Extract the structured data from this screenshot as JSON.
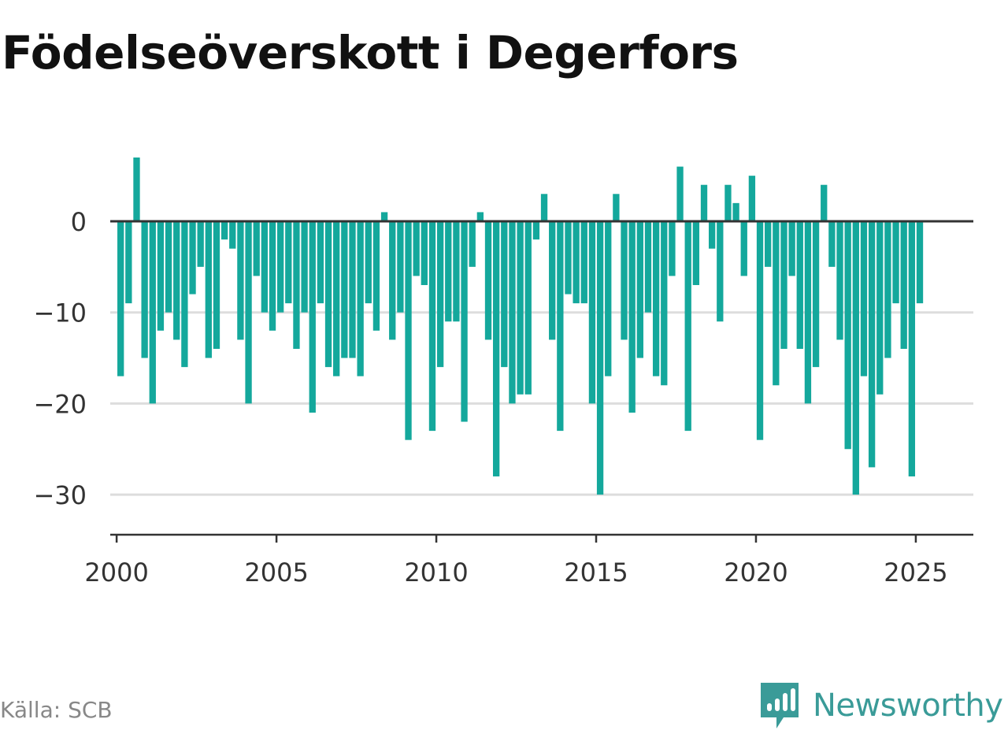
{
  "title": "Födelseöverskott i Degerfors",
  "source": "Källa: SCB",
  "brand": {
    "name": "Newsworthy",
    "icon": "newsworthy-logo-icon"
  },
  "colors": {
    "bar": "#14a89c",
    "zero_line": "#333333",
    "grid": "#dddddd",
    "brand": "#3a9b98"
  },
  "chart_data": {
    "type": "bar",
    "frequency": "quarterly",
    "start": "2000Q1",
    "values": [
      -17,
      -9,
      7,
      -15,
      -20,
      -12,
      -10,
      -13,
      -16,
      -8,
      -5,
      -15,
      -14,
      -2,
      -3,
      -13,
      -20,
      -6,
      -10,
      -12,
      -10,
      -9,
      -14,
      -10,
      -21,
      -9,
      -16,
      -17,
      -15,
      -15,
      -17,
      -9,
      -12,
      1,
      -13,
      -10,
      -24,
      -6,
      -7,
      -23,
      -16,
      -11,
      -11,
      -22,
      -5,
      1,
      -13,
      -28,
      -16,
      -20,
      -19,
      -19,
      -2,
      3,
      -13,
      -23,
      -8,
      -9,
      -9,
      -20,
      -30,
      -17,
      3,
      -13,
      -21,
      -15,
      -10,
      -17,
      -18,
      -6,
      6,
      -23,
      -7,
      4,
      -3,
      -11,
      4,
      2,
      -6,
      5,
      -24,
      -5,
      -18,
      -14,
      -6,
      -14,
      -20,
      -16,
      4,
      -5,
      -13,
      -25,
      -30,
      -17,
      -27,
      -19,
      -15,
      -9,
      -14,
      -28,
      -9
    ],
    "y_ticks": [
      0,
      -10,
      -20,
      -30
    ],
    "x_ticks": [
      2000,
      2005,
      2010,
      2015,
      2020,
      2025
    ],
    "ylim": [
      -35,
      10
    ],
    "xlim": [
      1999.8,
      2026.8
    ],
    "grid": true,
    "title": "",
    "xlabel": "",
    "ylabel": ""
  }
}
